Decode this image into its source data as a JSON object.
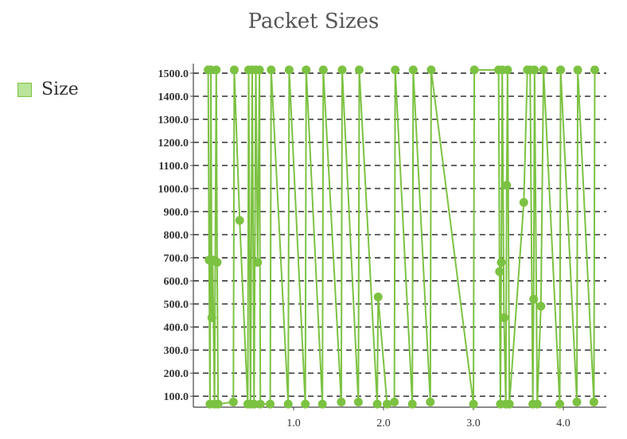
{
  "chart_data": {
    "type": "line",
    "title": "Packet Sizes",
    "xlabel": "",
    "ylabel": "",
    "xlim": [
      0,
      4.35
    ],
    "ylim": [
      45,
      1560
    ],
    "grid": true,
    "legend_placement": "left",
    "series": [
      {
        "name": "Size",
        "color": "#7cc242",
        "fill": "#b9e49a",
        "points": [
          [
            0.05,
            1514
          ],
          [
            0.06,
            690
          ],
          [
            0.07,
            66
          ],
          [
            0.08,
            1514
          ],
          [
            0.09,
            440
          ],
          [
            0.1,
            690
          ],
          [
            0.12,
            66
          ],
          [
            0.14,
            1514
          ],
          [
            0.15,
            680
          ],
          [
            0.16,
            66
          ],
          [
            0.33,
            75
          ],
          [
            0.34,
            1514
          ],
          [
            0.4,
            862
          ],
          [
            0.49,
            66
          ],
          [
            0.5,
            1514
          ],
          [
            0.52,
            66
          ],
          [
            0.54,
            1514
          ],
          [
            0.56,
            66
          ],
          [
            0.58,
            1514
          ],
          [
            0.6,
            680
          ],
          [
            0.62,
            1514
          ],
          [
            0.63,
            66
          ],
          [
            0.74,
            66
          ],
          [
            0.75,
            1514
          ],
          [
            0.94,
            66
          ],
          [
            0.95,
            1514
          ],
          [
            1.13,
            66
          ],
          [
            1.14,
            1514
          ],
          [
            1.32,
            66
          ],
          [
            1.33,
            1514
          ],
          [
            1.53,
            75
          ],
          [
            1.54,
            1514
          ],
          [
            1.72,
            75
          ],
          [
            1.73,
            1514
          ],
          [
            1.93,
            66
          ],
          [
            1.94,
            530
          ],
          [
            2.04,
            66
          ],
          [
            2.12,
            75
          ],
          [
            2.13,
            1514
          ],
          [
            2.32,
            66
          ],
          [
            2.33,
            1514
          ],
          [
            2.52,
            75
          ],
          [
            2.53,
            1514
          ],
          [
            3.0,
            66
          ],
          [
            3.01,
            1514
          ],
          [
            3.28,
            1514
          ],
          [
            3.29,
            640
          ],
          [
            3.3,
            66
          ],
          [
            3.31,
            680
          ],
          [
            3.32,
            1514
          ],
          [
            3.34,
            440
          ],
          [
            3.36,
            66
          ],
          [
            3.37,
            1014
          ],
          [
            3.38,
            1514
          ],
          [
            3.4,
            66
          ],
          [
            3.56,
            940
          ],
          [
            3.6,
            1514
          ],
          [
            3.63,
            1514
          ],
          [
            3.66,
            66
          ],
          [
            3.67,
            520
          ],
          [
            3.68,
            1514
          ],
          [
            3.71,
            66
          ],
          [
            3.75,
            490
          ],
          [
            3.78,
            1514
          ],
          [
            3.96,
            66
          ],
          [
            3.97,
            1514
          ],
          [
            4.15,
            75
          ],
          [
            4.16,
            1514
          ],
          [
            4.34,
            75
          ],
          [
            4.35,
            1514
          ]
        ]
      }
    ],
    "y_ticks": [
      {
        "value": 100,
        "label": "100.0"
      },
      {
        "value": 200,
        "label": "200.0"
      },
      {
        "value": 300,
        "label": "300.0"
      },
      {
        "value": 400,
        "label": "400.0"
      },
      {
        "value": 500,
        "label": "500.0"
      },
      {
        "value": 600,
        "label": "600.0"
      },
      {
        "value": 700,
        "label": "700.0"
      },
      {
        "value": 800,
        "label": "800.0"
      },
      {
        "value": 900,
        "label": "900.0"
      },
      {
        "value": 1000,
        "label": "1000.0"
      },
      {
        "value": 1100,
        "label": "1100.0"
      },
      {
        "value": 1200,
        "label": "1200.0"
      },
      {
        "value": 1300,
        "label": "1300.0"
      },
      {
        "value": 1400,
        "label": "1400.0"
      },
      {
        "value": 1500,
        "label": "1500.0"
      }
    ],
    "x_ticks": [
      {
        "value": 1.0,
        "label": "1.0"
      },
      {
        "value": 2.0,
        "label": "2.0"
      },
      {
        "value": 3.0,
        "label": "3.0"
      },
      {
        "value": 4.0,
        "label": "4.0"
      }
    ]
  }
}
